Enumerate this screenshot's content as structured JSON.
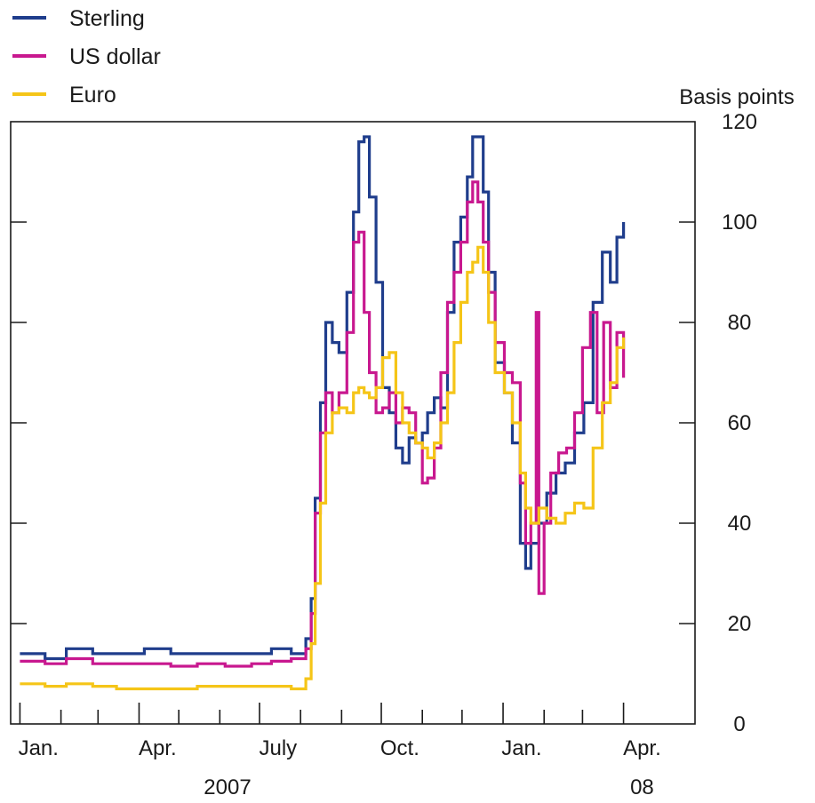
{
  "chart_data": {
    "type": "line",
    "unit_label": "Basis points",
    "ylim": [
      0,
      120
    ],
    "y_ticks": [
      0,
      20,
      40,
      60,
      80,
      100,
      120
    ],
    "x_range": [
      "2006-12-25",
      "2008-05-25"
    ],
    "x_tick_labels": [
      {
        "date": "2007-01-15",
        "label": "Jan."
      },
      {
        "date": "2007-04-15",
        "label": "Apr."
      },
      {
        "date": "2007-07-15",
        "label": "July"
      },
      {
        "date": "2007-10-15",
        "label": "Oct."
      },
      {
        "date": "2008-01-15",
        "label": "Jan."
      },
      {
        "date": "2008-04-15",
        "label": "Apr."
      }
    ],
    "month_ticks": [
      "2007-01-01",
      "2007-02-01",
      "2007-03-01",
      "2007-04-01",
      "2007-05-01",
      "2007-06-01",
      "2007-07-01",
      "2007-08-01",
      "2007-09-01",
      "2007-10-01",
      "2007-11-01",
      "2007-12-01",
      "2008-01-01",
      "2008-02-01",
      "2008-03-01",
      "2008-04-01"
    ],
    "year_labels": [
      {
        "date": "2007-07-01",
        "label": "2007"
      },
      {
        "date": "2008-04-15",
        "label": "08"
      }
    ],
    "legend_position": "top-left",
    "grid": false,
    "series": [
      {
        "name": "Sterling",
        "color": "#1f3d8c",
        "points": [
          [
            "2007-01-01",
            14
          ],
          [
            "2007-01-20",
            13
          ],
          [
            "2007-02-05",
            15
          ],
          [
            "2007-02-25",
            14
          ],
          [
            "2007-03-15",
            14
          ],
          [
            "2007-04-05",
            15
          ],
          [
            "2007-04-25",
            14
          ],
          [
            "2007-05-15",
            14
          ],
          [
            "2007-06-05",
            14
          ],
          [
            "2007-06-25",
            14
          ],
          [
            "2007-07-10",
            15
          ],
          [
            "2007-07-25",
            14
          ],
          [
            "2007-08-05",
            17
          ],
          [
            "2007-08-09",
            25
          ],
          [
            "2007-08-12",
            45
          ],
          [
            "2007-08-16",
            64
          ],
          [
            "2007-08-20",
            80
          ],
          [
            "2007-08-25",
            76
          ],
          [
            "2007-08-30",
            74
          ],
          [
            "2007-09-05",
            86
          ],
          [
            "2007-09-10",
            102
          ],
          [
            "2007-09-14",
            116
          ],
          [
            "2007-09-18",
            117
          ],
          [
            "2007-09-22",
            105
          ],
          [
            "2007-09-27",
            88
          ],
          [
            "2007-10-02",
            67
          ],
          [
            "2007-10-07",
            62
          ],
          [
            "2007-10-12",
            55
          ],
          [
            "2007-10-17",
            52
          ],
          [
            "2007-10-22",
            57
          ],
          [
            "2007-10-27",
            56
          ],
          [
            "2007-11-01",
            58
          ],
          [
            "2007-11-05",
            62
          ],
          [
            "2007-11-10",
            65
          ],
          [
            "2007-11-15",
            63
          ],
          [
            "2007-11-20",
            82
          ],
          [
            "2007-11-25",
            96
          ],
          [
            "2007-11-30",
            101
          ],
          [
            "2007-12-05",
            109
          ],
          [
            "2007-12-09",
            117
          ],
          [
            "2007-12-13",
            117
          ],
          [
            "2007-12-17",
            106
          ],
          [
            "2007-12-21",
            90
          ],
          [
            "2007-12-26",
            72
          ],
          [
            "2008-01-02",
            66
          ],
          [
            "2008-01-08",
            56
          ],
          [
            "2008-01-14",
            36
          ],
          [
            "2008-01-18",
            31
          ],
          [
            "2008-01-22",
            36
          ],
          [
            "2008-01-28",
            40
          ],
          [
            "2008-02-03",
            46
          ],
          [
            "2008-02-10",
            50
          ],
          [
            "2008-02-17",
            52
          ],
          [
            "2008-02-24",
            58
          ],
          [
            "2008-03-02",
            64
          ],
          [
            "2008-03-09",
            84
          ],
          [
            "2008-03-16",
            94
          ],
          [
            "2008-03-22",
            88
          ],
          [
            "2008-03-27",
            97
          ],
          [
            "2008-04-01",
            100
          ]
        ]
      },
      {
        "name": "US dollar",
        "color": "#c8188f",
        "points": [
          [
            "2007-01-01",
            12.5
          ],
          [
            "2007-01-20",
            12
          ],
          [
            "2007-02-05",
            13
          ],
          [
            "2007-02-25",
            12
          ],
          [
            "2007-03-15",
            12
          ],
          [
            "2007-04-05",
            12
          ],
          [
            "2007-04-25",
            11.5
          ],
          [
            "2007-05-15",
            12
          ],
          [
            "2007-06-05",
            11.5
          ],
          [
            "2007-06-25",
            12
          ],
          [
            "2007-07-10",
            12.5
          ],
          [
            "2007-07-25",
            13
          ],
          [
            "2007-08-05",
            15
          ],
          [
            "2007-08-09",
            22
          ],
          [
            "2007-08-12",
            42
          ],
          [
            "2007-08-16",
            58
          ],
          [
            "2007-08-20",
            66
          ],
          [
            "2007-08-25",
            62
          ],
          [
            "2007-08-30",
            66
          ],
          [
            "2007-09-05",
            78
          ],
          [
            "2007-09-10",
            96
          ],
          [
            "2007-09-14",
            98
          ],
          [
            "2007-09-18",
            82
          ],
          [
            "2007-09-22",
            70
          ],
          [
            "2007-09-27",
            62
          ],
          [
            "2007-10-02",
            63
          ],
          [
            "2007-10-07",
            66
          ],
          [
            "2007-10-12",
            60
          ],
          [
            "2007-10-17",
            63
          ],
          [
            "2007-10-22",
            62
          ],
          [
            "2007-10-27",
            56
          ],
          [
            "2007-11-01",
            48
          ],
          [
            "2007-11-05",
            49
          ],
          [
            "2007-11-10",
            55
          ],
          [
            "2007-11-15",
            70
          ],
          [
            "2007-11-20",
            84
          ],
          [
            "2007-11-25",
            90
          ],
          [
            "2007-11-30",
            96
          ],
          [
            "2007-12-05",
            104
          ],
          [
            "2007-12-09",
            108
          ],
          [
            "2007-12-13",
            104
          ],
          [
            "2007-12-17",
            96
          ],
          [
            "2007-12-21",
            86
          ],
          [
            "2007-12-26",
            76
          ],
          [
            "2008-01-02",
            70
          ],
          [
            "2008-01-08",
            68
          ],
          [
            "2008-01-14",
            48
          ],
          [
            "2008-01-18",
            36
          ],
          [
            "2008-01-22",
            40
          ],
          [
            "2008-01-26",
            82
          ],
          [
            "2008-01-28",
            26
          ],
          [
            "2008-02-01",
            40
          ],
          [
            "2008-02-06",
            50
          ],
          [
            "2008-02-12",
            54
          ],
          [
            "2008-02-18",
            55
          ],
          [
            "2008-02-24",
            62
          ],
          [
            "2008-03-01",
            75
          ],
          [
            "2008-03-07",
            82
          ],
          [
            "2008-03-12",
            62
          ],
          [
            "2008-03-17",
            80
          ],
          [
            "2008-03-22",
            67
          ],
          [
            "2008-03-27",
            78
          ],
          [
            "2008-04-01",
            69
          ]
        ]
      },
      {
        "name": "Euro",
        "color": "#f5c518",
        "points": [
          [
            "2007-01-01",
            8
          ],
          [
            "2007-01-20",
            7.5
          ],
          [
            "2007-02-05",
            8
          ],
          [
            "2007-02-25",
            7.5
          ],
          [
            "2007-03-15",
            7
          ],
          [
            "2007-04-05",
            7
          ],
          [
            "2007-04-25",
            7
          ],
          [
            "2007-05-15",
            7.5
          ],
          [
            "2007-06-05",
            7.5
          ],
          [
            "2007-06-25",
            7.5
          ],
          [
            "2007-07-10",
            7.5
          ],
          [
            "2007-07-25",
            7
          ],
          [
            "2007-08-05",
            9
          ],
          [
            "2007-08-09",
            16
          ],
          [
            "2007-08-12",
            28
          ],
          [
            "2007-08-16",
            44
          ],
          [
            "2007-08-20",
            58
          ],
          [
            "2007-08-25",
            62
          ],
          [
            "2007-08-30",
            63
          ],
          [
            "2007-09-05",
            62
          ],
          [
            "2007-09-10",
            66
          ],
          [
            "2007-09-14",
            67
          ],
          [
            "2007-09-18",
            66
          ],
          [
            "2007-09-22",
            65
          ],
          [
            "2007-09-27",
            67
          ],
          [
            "2007-10-02",
            73
          ],
          [
            "2007-10-07",
            74
          ],
          [
            "2007-10-12",
            66
          ],
          [
            "2007-10-17",
            60
          ],
          [
            "2007-10-22",
            58
          ],
          [
            "2007-10-27",
            56
          ],
          [
            "2007-11-01",
            55
          ],
          [
            "2007-11-05",
            53
          ],
          [
            "2007-11-10",
            56
          ],
          [
            "2007-11-15",
            60
          ],
          [
            "2007-11-20",
            66
          ],
          [
            "2007-11-25",
            76
          ],
          [
            "2007-11-30",
            84
          ],
          [
            "2007-12-05",
            90
          ],
          [
            "2007-12-09",
            92
          ],
          [
            "2007-12-13",
            95
          ],
          [
            "2007-12-17",
            90
          ],
          [
            "2007-12-21",
            80
          ],
          [
            "2007-12-26",
            70
          ],
          [
            "2008-01-02",
            66
          ],
          [
            "2008-01-08",
            60
          ],
          [
            "2008-01-14",
            50
          ],
          [
            "2008-01-18",
            43
          ],
          [
            "2008-01-22",
            40
          ],
          [
            "2008-01-28",
            43
          ],
          [
            "2008-02-03",
            41
          ],
          [
            "2008-02-10",
            40
          ],
          [
            "2008-02-17",
            42
          ],
          [
            "2008-02-24",
            44
          ],
          [
            "2008-03-02",
            43
          ],
          [
            "2008-03-09",
            55
          ],
          [
            "2008-03-16",
            64
          ],
          [
            "2008-03-22",
            68
          ],
          [
            "2008-03-27",
            75
          ],
          [
            "2008-04-01",
            77
          ]
        ]
      }
    ]
  }
}
